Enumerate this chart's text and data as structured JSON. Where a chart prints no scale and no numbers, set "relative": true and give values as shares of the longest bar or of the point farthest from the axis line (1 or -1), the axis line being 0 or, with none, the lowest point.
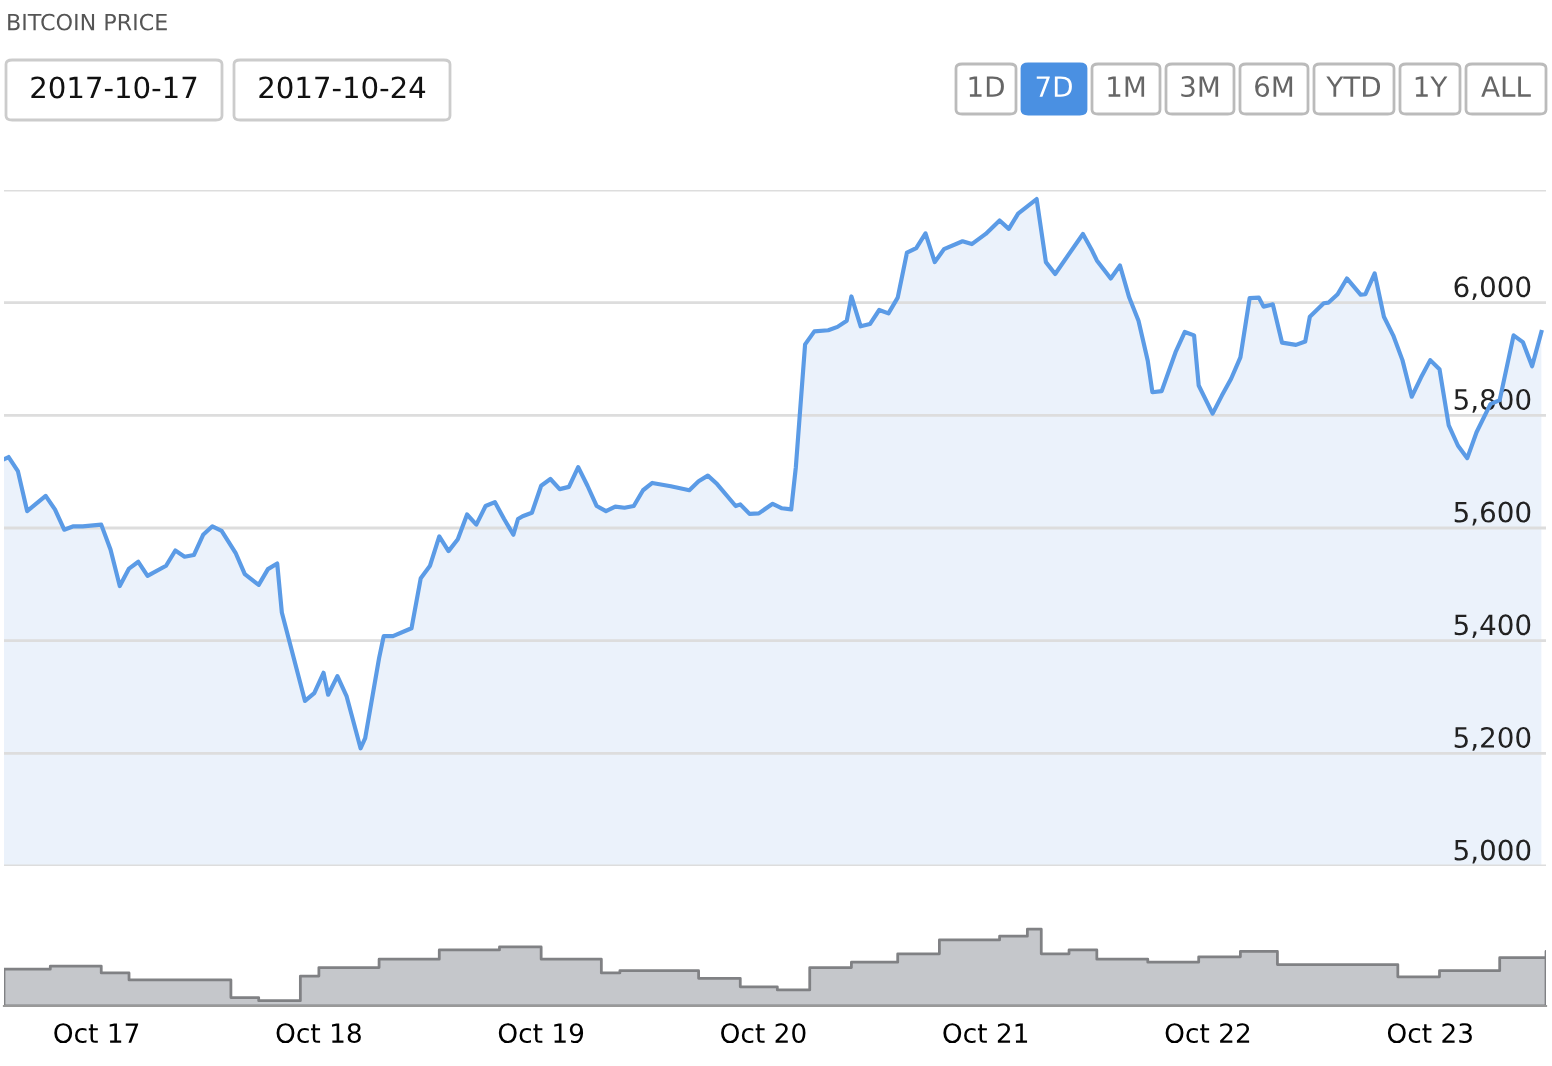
{
  "chart_data": [
    {
      "type": "area",
      "title": "BITCOIN PRICE",
      "annotations": [
        "2017-10-17",
        "2017-10-24",
        "1D",
        "7D",
        "1M",
        "3M",
        "6M",
        "YTD",
        "1Y",
        "ALL"
      ],
      "x": [
        "2017-10-16T14:00",
        "2017-10-16T14:30",
        "2017-10-16T15:30",
        "2017-10-16T16:30",
        "2017-10-16T18:30",
        "2017-10-16T19:30",
        "2017-10-16T20:30",
        "2017-10-16T21:30",
        "2017-10-16T22:30",
        "2017-10-17T00:30",
        "2017-10-17T01:30",
        "2017-10-17T02:30",
        "2017-10-17T03:30",
        "2017-10-17T04:30",
        "2017-10-17T05:30",
        "2017-10-17T07:30",
        "2017-10-17T08:30",
        "2017-10-17T09:30",
        "2017-10-17T10:30",
        "2017-10-17T11:30",
        "2017-10-17T12:30",
        "2017-10-17T13:30",
        "2017-10-17T15:00",
        "2017-10-17T16:00",
        "2017-10-17T17:30",
        "2017-10-17T18:30",
        "2017-10-17T19:30",
        "2017-10-17T20:00",
        "2017-10-17T22:30",
        "2017-10-17T23:30",
        "2017-10-18T00:30",
        "2017-10-18T01:00",
        "2017-10-18T02:00",
        "2017-10-18T03:00",
        "2017-10-18T04:30",
        "2017-10-18T05:00",
        "2017-10-18T06:30",
        "2017-10-18T07:00",
        "2017-10-18T08:00",
        "2017-10-18T10:00",
        "2017-10-18T11:00",
        "2017-10-18T12:00",
        "2017-10-18T13:00",
        "2017-10-18T14:00",
        "2017-10-18T15:00",
        "2017-10-18T16:00",
        "2017-10-18T17:00",
        "2017-10-18T18:00",
        "2017-10-18T19:00",
        "2017-10-18T20:00",
        "2017-10-18T21:00",
        "2017-10-18T21:30",
        "2017-10-18T22:00",
        "2017-10-18T23:00",
        "2017-10-19T00:00",
        "2017-10-19T01:00",
        "2017-10-19T02:00",
        "2017-10-19T03:00",
        "2017-10-19T04:00",
        "2017-10-19T05:00",
        "2017-10-19T06:00",
        "2017-10-19T07:00",
        "2017-10-19T08:00",
        "2017-10-19T09:00",
        "2017-10-19T10:00",
        "2017-10-19T11:00",
        "2017-10-19T12:00",
        "2017-10-19T14:00",
        "2017-10-19T16:00",
        "2017-10-19T17:00",
        "2017-10-19T18:00",
        "2017-10-19T19:00",
        "2017-10-19T21:00",
        "2017-10-19T21:30",
        "2017-10-19T22:30",
        "2017-10-19T23:30",
        "2017-10-20T01:00",
        "2017-10-20T02:00",
        "2017-10-20T03:00",
        "2017-10-20T03:30",
        "2017-10-20T04:30",
        "2017-10-20T05:30",
        "2017-10-20T07:00",
        "2017-10-20T08:00",
        "2017-10-20T09:00",
        "2017-10-20T09:30",
        "2017-10-20T10:30",
        "2017-10-20T11:30",
        "2017-10-20T12:30",
        "2017-10-20T13:30",
        "2017-10-20T14:30",
        "2017-10-20T15:30",
        "2017-10-20T16:30",
        "2017-10-20T17:30",
        "2017-10-20T18:30",
        "2017-10-20T19:30",
        "2017-10-20T21:30",
        "2017-10-20T22:30",
        "2017-10-21T00:00",
        "2017-10-21T01:30",
        "2017-10-21T02:30",
        "2017-10-21T03:30",
        "2017-10-21T05:30",
        "2017-10-21T06:30",
        "2017-10-21T07:30",
        "2017-10-21T10:30",
        "2017-10-21T11:30",
        "2017-10-21T12:00",
        "2017-10-21T13:30",
        "2017-10-21T14:30",
        "2017-10-21T15:30",
        "2017-10-21T16:30",
        "2017-10-21T17:30",
        "2017-10-21T18:00",
        "2017-10-21T19:00",
        "2017-10-21T20:30",
        "2017-10-21T21:30",
        "2017-10-21T22:30",
        "2017-10-21T23:00",
        "2017-10-22T00:30",
        "2017-10-22T01:30",
        "2017-10-22T02:30",
        "2017-10-22T03:30",
        "2017-10-22T04:30",
        "2017-10-22T05:30",
        "2017-10-22T06:00",
        "2017-10-22T07:00",
        "2017-10-22T08:00",
        "2017-10-22T09:30",
        "2017-10-22T10:30",
        "2017-10-22T11:00",
        "2017-10-22T12:30",
        "2017-10-22T13:00",
        "2017-10-22T14:00",
        "2017-10-22T15:00",
        "2017-10-22T16:30",
        "2017-10-22T17:00",
        "2017-10-22T18:00",
        "2017-10-22T19:00",
        "2017-10-22T20:00",
        "2017-10-22T21:00",
        "2017-10-22T22:00",
        "2017-10-22T23:00",
        "2017-10-23T00:00",
        "2017-10-23T01:00",
        "2017-10-23T02:00",
        "2017-10-23T03:00",
        "2017-10-23T04:00",
        "2017-10-23T05:00",
        "2017-10-23T06:30",
        "2017-10-23T07:30",
        "2017-10-23T09:00",
        "2017-10-23T10:00",
        "2017-10-23T11:00",
        "2017-10-23T12:00"
      ],
      "series": [
        {
          "color": "#5b9be6",
          "values": [
            5722,
            5726,
            5701,
            5630,
            5657,
            5633,
            5597,
            5603,
            5603,
            5606,
            5562,
            5497,
            5528,
            5540,
            5515,
            5533,
            5560,
            5549,
            5552,
            5588,
            5603,
            5595,
            5556,
            5518,
            5499,
            5527,
            5537,
            5450,
            5293,
            5307,
            5343,
            5304,
            5337,
            5301,
            5209,
            5227,
            5369,
            5408,
            5408,
            5422,
            5511,
            5533,
            5585,
            5559,
            5580,
            5624,
            5606,
            5639,
            5646,
            5616,
            5588,
            5616,
            5621,
            5627,
            5675,
            5687,
            5669,
            5673,
            5708,
            5675,
            5639,
            5630,
            5638,
            5636,
            5639,
            5667,
            5680,
            5674,
            5667,
            5683,
            5693,
            5678,
            5639,
            5642,
            5625,
            5626,
            5643,
            5635,
            5633,
            5708,
            5926,
            5949,
            5951,
            5957,
            5968,
            6011,
            5958,
            5962,
            5987,
            5981,
            6009,
            6089,
            6097,
            6123,
            6072,
            6095,
            6109,
            6104,
            6122,
            6146,
            6131,
            6158,
            6184,
            6072,
            6051,
            6122,
            6092,
            6075,
            6043,
            6066,
            6009,
            5968,
            5897,
            5841,
            5843,
            5912,
            5948,
            5942,
            5853,
            5803,
            5835,
            5865,
            5903,
            6008,
            6009,
            5993,
            5997,
            5929,
            5925,
            5931,
            5975,
            5999,
            6000,
            6015,
            6043,
            6014,
            6015,
            6052,
            5975,
            5942,
            5898,
            5833,
            5867,
            5898,
            5882,
            5782,
            5746,
            5724,
            5770,
            5820,
            5827,
            5942,
            5930,
            5887,
            5948
          ]
        }
      ],
      "xlim": [
        "2017-10-16T14:00",
        "2017-10-23T12:30"
      ],
      "ylim": [
        5000,
        6200
      ],
      "yticks": [
        {
          "value": 5000,
          "label": "5,000"
        },
        {
          "value": 5200,
          "label": "5,200"
        },
        {
          "value": 5400,
          "label": "5,400"
        },
        {
          "value": 5600,
          "label": "5,600"
        },
        {
          "value": 5800,
          "label": "5,800"
        },
        {
          "value": 6000,
          "label": "6,000"
        },
        {
          "value": 6200,
          "label": null
        }
      ],
      "grid": "y",
      "tick_labels": "y"
    },
    {
      "type": "area",
      "relative": true,
      "x": [
        "2017-10-16T14:00",
        "2017-10-16T19:00",
        "2017-10-17T00:30",
        "2017-10-17T03:30",
        "2017-10-17T11:00",
        "2017-10-17T14:30",
        "2017-10-17T17:30",
        "2017-10-17T20:00",
        "2017-10-17T22:00",
        "2017-10-18T00:00",
        "2017-10-18T06:30",
        "2017-10-18T13:00",
        "2017-10-18T19:30",
        "2017-10-19T00:00",
        "2017-10-19T04:00",
        "2017-10-19T06:30",
        "2017-10-19T08:30",
        "2017-10-19T17:00",
        "2017-10-19T21:30",
        "2017-10-20T01:30",
        "2017-10-20T05:00",
        "2017-10-20T09:30",
        "2017-10-20T14:30",
        "2017-10-20T19:00",
        "2017-10-21T01:30",
        "2017-10-21T04:30",
        "2017-10-21T06:00",
        "2017-10-21T09:00",
        "2017-10-21T12:00",
        "2017-10-21T17:30",
        "2017-10-21T23:00",
        "2017-10-22T03:30",
        "2017-10-22T07:30",
        "2017-10-22T14:00",
        "2017-10-22T20:30",
        "2017-10-23T01:00",
        "2017-10-23T07:30",
        "2017-10-23T12:30"
      ],
      "series": [
        {
          "color": "#c5c7cb",
          "values": [
            0.48,
            0.52,
            0.43,
            0.34,
            0.34,
            0.11,
            0.07,
            0.07,
            0.39,
            0.5,
            0.61,
            0.73,
            0.77,
            0.61,
            0.61,
            0.43,
            0.46,
            0.36,
            0.25,
            0.21,
            0.5,
            0.57,
            0.68,
            0.86,
            0.91,
            1.0,
            0.68,
            0.73,
            0.61,
            0.57,
            0.64,
            0.71,
            0.54,
            0.54,
            0.38,
            0.46,
            0.63,
            0.71
          ]
        }
      ],
      "xlim": [
        "2017-10-16T14:00",
        "2017-10-23T12:30"
      ],
      "xticks": [
        {
          "value": "2017-10-17",
          "label": "Oct 17"
        },
        {
          "value": "2017-10-18",
          "label": "Oct 18"
        },
        {
          "value": "2017-10-19",
          "label": "Oct 19"
        },
        {
          "value": "2017-10-20",
          "label": "Oct 20"
        },
        {
          "value": "2017-10-21",
          "label": "Oct 21"
        },
        {
          "value": "2017-10-22",
          "label": "Oct 22"
        },
        {
          "value": "2017-10-23",
          "label": "Oct 23"
        }
      ],
      "tick_labels": "x"
    }
  ]
}
